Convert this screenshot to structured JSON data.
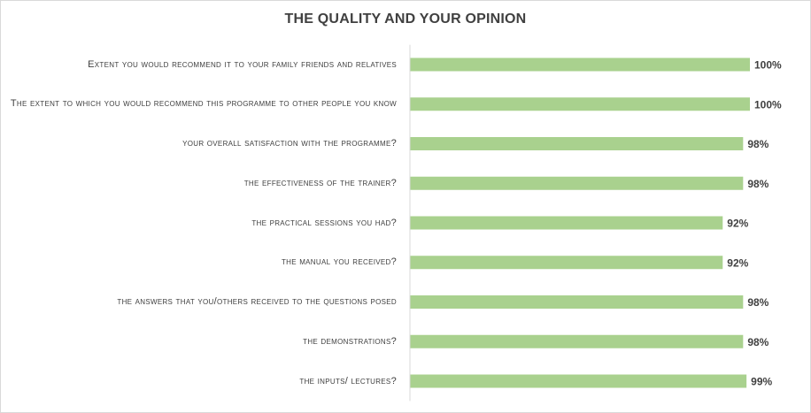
{
  "chart_data": {
    "type": "bar",
    "orientation": "horizontal",
    "title": "THE QUALITY AND YOUR OPINION",
    "xlabel": "",
    "ylabel": "",
    "xlim": [
      0,
      100
    ],
    "grid": false,
    "legend": "none",
    "bar_color": "#a9d18e",
    "categories": [
      "Extent you would recommend it to your family friends and relatives",
      "The extent to which you would recommend this programme to other people you know",
      "your overall satisfaction with the programme?",
      "the effectiveness of the trainer?",
      "the practical sessions you had?",
      "the manual you received?",
      "the answers that you/others received to the questions posed",
      "the demonstrations?",
      "the inputs/ lectures?"
    ],
    "values": [
      100,
      100,
      98,
      98,
      92,
      92,
      98,
      98,
      99
    ],
    "data_labels": [
      "100%",
      "100%",
      "98%",
      "98%",
      "92%",
      "92%",
      "98%",
      "98%",
      "99%"
    ]
  }
}
